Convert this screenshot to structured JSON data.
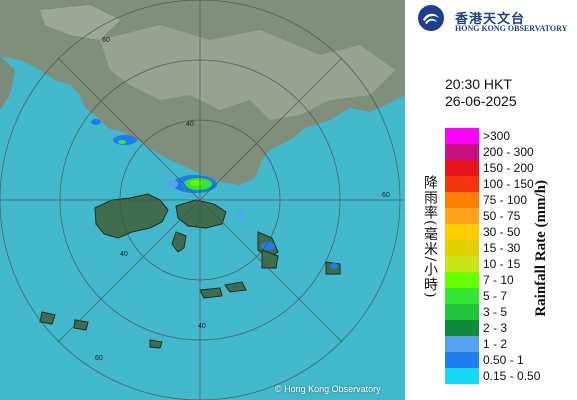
{
  "map": {
    "copyright": "© Hong Kong Observatory",
    "range_labels": [
      "60",
      "40",
      "60",
      "40",
      "60",
      "40"
    ]
  },
  "panel": {
    "org_zh": "香港天文台",
    "org_en": "HONG KONG OBSERVATORY",
    "time": "20:30 HKT",
    "date": "26-06-2025",
    "axis_zh": "降雨率(毫米/小時)",
    "axis_en": "Rainfall Rate (mm/h)"
  },
  "legend": [
    {
      "label": ">300",
      "color": "#ff00ff"
    },
    {
      "label": "200 - 300",
      "color": "#c8107e"
    },
    {
      "label": "150 - 200",
      "color": "#e8141e"
    },
    {
      "label": "100 - 150",
      "color": "#f5340e"
    },
    {
      "label": "75 - 100",
      "color": "#ff8000"
    },
    {
      "label": "50 - 75",
      "color": "#ffa31a"
    },
    {
      "label": "30 - 50",
      "color": "#ffcc00"
    },
    {
      "label": "15 - 30",
      "color": "#e0d000"
    },
    {
      "label": "10 - 15",
      "color": "#c6e61a"
    },
    {
      "label": "7 - 10",
      "color": "#66ff00"
    },
    {
      "label": "5 - 7",
      "color": "#33e633"
    },
    {
      "label": "3 - 5",
      "color": "#1fc43c"
    },
    {
      "label": "2 - 3",
      "color": "#138a3a"
    },
    {
      "label": "1 - 2",
      "color": "#5aa0f0"
    },
    {
      "label": "0.50 - 1",
      "color": "#1c7cf0"
    },
    {
      "label": "0.15 - 0.50",
      "color": "#15d8f5"
    }
  ]
}
